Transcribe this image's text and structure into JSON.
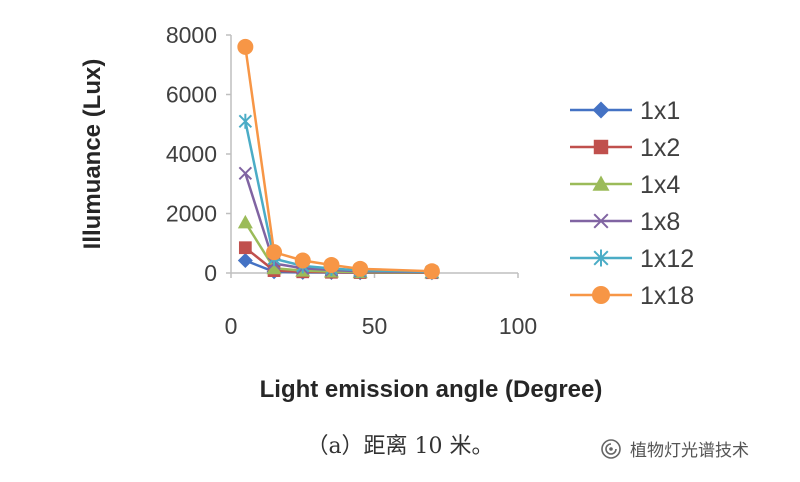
{
  "chart_data": {
    "type": "line",
    "xlabel": "Light emission angle (Degree)",
    "ylabel": "Illumuance (Lux)",
    "xlim": [
      0,
      100
    ],
    "ylim": [
      0,
      8000
    ],
    "x_ticks": [
      0,
      50,
      100
    ],
    "y_ticks": [
      0,
      2000,
      4000,
      6000,
      8000
    ],
    "grid": false,
    "legend_position": "right",
    "x": [
      5,
      15,
      25,
      35,
      45,
      70
    ],
    "series": [
      {
        "name": "1x1",
        "color": "#4472C4",
        "marker": "diamond",
        "values": [
          420,
          40,
          20,
          15,
          10,
          10
        ]
      },
      {
        "name": "1x2",
        "color": "#C0504D",
        "marker": "square",
        "values": [
          850,
          80,
          40,
          25,
          15,
          10
        ]
      },
      {
        "name": "1x4",
        "color": "#9BBB59",
        "marker": "triangle",
        "values": [
          1700,
          160,
          80,
          50,
          30,
          20
        ]
      },
      {
        "name": "1x8",
        "color": "#8064A2",
        "marker": "x",
        "values": [
          3350,
          320,
          160,
          100,
          60,
          30
        ]
      },
      {
        "name": "1x12",
        "color": "#4BACC6",
        "marker": "star",
        "values": [
          5100,
          480,
          240,
          150,
          90,
          40
        ]
      },
      {
        "name": "1x18",
        "color": "#F79646",
        "marker": "circle",
        "values": [
          7600,
          700,
          420,
          270,
          140,
          60
        ]
      }
    ]
  },
  "caption": "（a）距离 10 米。",
  "watermark": {
    "icon": "wechat-official-account-icon",
    "text": "植物灯光谱技术"
  }
}
